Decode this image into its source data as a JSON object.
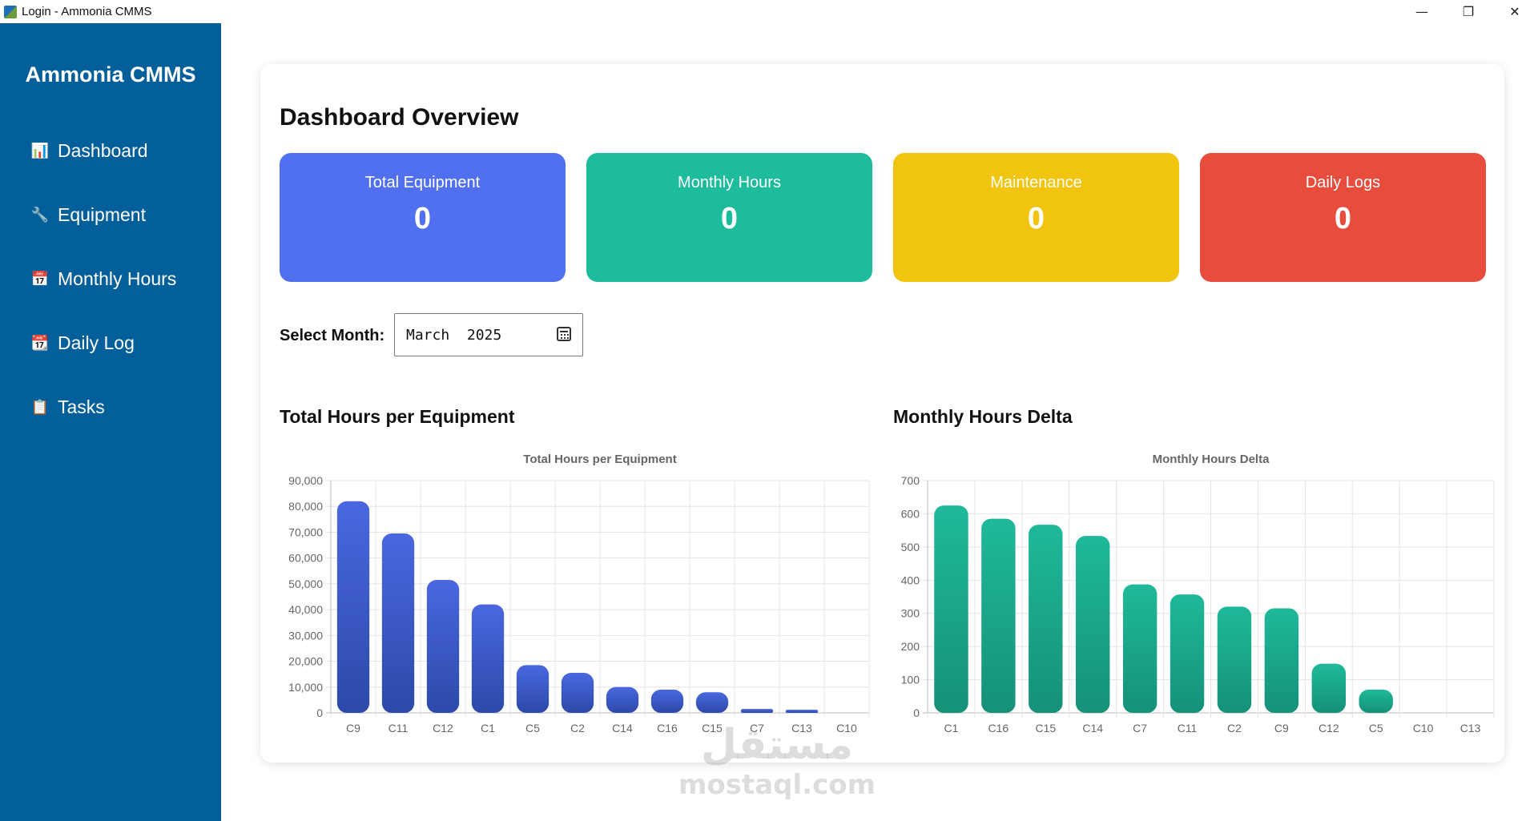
{
  "window": {
    "title": "Login - Ammonia CMMS",
    "controls": {
      "minimize": "—",
      "restore": "❐",
      "close": "✕"
    }
  },
  "sidebar": {
    "brand": "Ammonia CMMS",
    "items": [
      {
        "label": "Dashboard",
        "icon": "bar-chart-icon",
        "glyph": "📊"
      },
      {
        "label": "Equipment",
        "icon": "wrench-icon",
        "glyph": "🔧"
      },
      {
        "label": "Monthly Hours",
        "icon": "calendar-icon",
        "glyph": "📅"
      },
      {
        "label": "Daily Log",
        "icon": "tear-off-calendar-icon",
        "glyph": "📆"
      },
      {
        "label": "Tasks",
        "icon": "clipboard-icon",
        "glyph": "📋"
      }
    ]
  },
  "main": {
    "title": "Dashboard Overview",
    "stats": [
      {
        "label": "Total Equipment",
        "value": "0",
        "color": "#5170f0"
      },
      {
        "label": "Monthly Hours",
        "value": "0",
        "color": "#1dbc9c"
      },
      {
        "label": "Maintenance",
        "value": "0",
        "color": "#f1c40f"
      },
      {
        "label": "Daily Logs",
        "value": "0",
        "color": "#e74c3c"
      }
    ],
    "month_picker": {
      "label": "Select Month:",
      "value": "March  2025"
    },
    "sections": {
      "left": "Total Hours per Equipment",
      "right": "Monthly Hours Delta"
    }
  },
  "watermark": {
    "arabic": "مستقل",
    "latin": "mostaql.com"
  },
  "chart_data": [
    {
      "type": "bar",
      "title": "Total Hours per Equipment",
      "categories": [
        "C9",
        "C11",
        "C12",
        "C1",
        "C5",
        "C2",
        "C14",
        "C16",
        "C15",
        "C7",
        "C13",
        "C10"
      ],
      "values": [
        82000,
        69500,
        51500,
        42000,
        18500,
        15500,
        10000,
        9000,
        8000,
        1500,
        1200,
        0
      ],
      "ylim": [
        0,
        90000
      ],
      "yticks": [
        0,
        10000,
        20000,
        30000,
        40000,
        50000,
        60000,
        70000,
        80000,
        90000
      ],
      "ytick_labels": [
        "0",
        "10,000",
        "20,000",
        "30,000",
        "40,000",
        "50,000",
        "60,000",
        "70,000",
        "80,000",
        "90,000"
      ],
      "color_top": "#4a67e0",
      "color_bottom": "#2c4aa8",
      "grid": true
    },
    {
      "type": "bar",
      "title": "Monthly Hours Delta",
      "categories": [
        "C1",
        "C16",
        "C15",
        "C14",
        "C7",
        "C11",
        "C2",
        "C9",
        "C12",
        "C5",
        "C10",
        "C13"
      ],
      "values": [
        625,
        585,
        567,
        533,
        387,
        357,
        320,
        315,
        148,
        70,
        0,
        0
      ],
      "ylim": [
        0,
        700
      ],
      "yticks": [
        0,
        100,
        200,
        300,
        400,
        500,
        600,
        700
      ],
      "ytick_labels": [
        "0",
        "100",
        "200",
        "300",
        "400",
        "500",
        "600",
        "700"
      ],
      "color_top": "#1fb99a",
      "color_bottom": "#159178",
      "grid": true
    }
  ]
}
